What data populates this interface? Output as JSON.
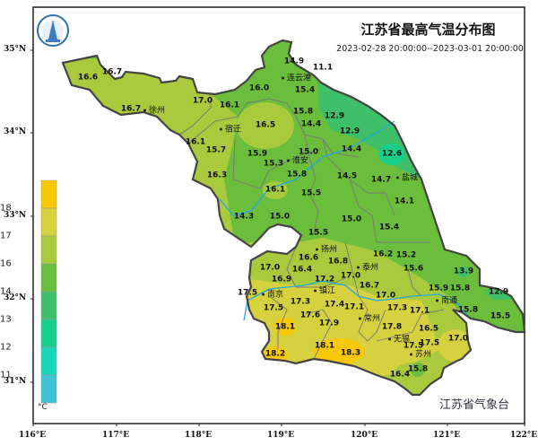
{
  "title": "江苏省最高气温分布图",
  "time_range": "2023-02-28 20:00:00--2023-03-01 20:00:00",
  "agency": "江苏省气象台",
  "logo": {
    "icon": "meteorological-bureau-emblem",
    "text": "江苏省气象台"
  },
  "legend": {
    "unit": "°C",
    "ticks": [
      "18",
      "17",
      "16",
      "14",
      "13",
      "12",
      "11"
    ],
    "colors": [
      "#f7c906",
      "#d6d13f",
      "#a9ca3d",
      "#6bbd3c",
      "#40bf6a",
      "#17cf89",
      "#17d6bd",
      "#40c4d3"
    ]
  },
  "axes": {
    "lat_ticks": [
      "35°N",
      "34°N",
      "33°N",
      "32°N",
      "31°N"
    ],
    "lon_ticks": [
      "116°E",
      "117°E",
      "118°E",
      "119°E",
      "120°E",
      "121°E",
      "122°E"
    ]
  },
  "cities": [
    "连云港",
    "徐州",
    "宿迁",
    "淮安",
    "盐城",
    "扬州",
    "泰州",
    "南京",
    "镇江",
    "常州",
    "南通",
    "无锡",
    "苏州"
  ],
  "stations": [
    "16.6",
    "16.7",
    "16.7",
    "17.0",
    "16.1",
    "16.5",
    "16.1",
    "15.7",
    "16.0",
    "14.9",
    "11.1",
    "15.4",
    "15.8",
    "14.4",
    "12.9",
    "12.9",
    "12.6",
    "14.4",
    "15.0",
    "15.9",
    "15.3",
    "15.8",
    "14.5",
    "14.7",
    "16.3",
    "16.1",
    "15.5",
    "14.1",
    "14.3",
    "15.0",
    "15.0",
    "15.4",
    "15.5",
    "17.0",
    "16.9",
    "16.4",
    "16.6",
    "16.8",
    "16.2",
    "15.2",
    "15.6",
    "13.9",
    "17.0",
    "16.7",
    "17.2",
    "17.5",
    "17.3",
    "17.4",
    "17.5",
    "17.0",
    "17.3",
    "17.1",
    "17.1",
    "15.9",
    "15.8",
    "15.8",
    "12.9",
    "15.5",
    "17.6",
    "17.9",
    "18.1",
    "17.8",
    "16.5",
    "17.0",
    "17.5",
    "18.1",
    "18.3",
    "17.5",
    "18.2",
    "15.8",
    "16.4"
  ]
}
